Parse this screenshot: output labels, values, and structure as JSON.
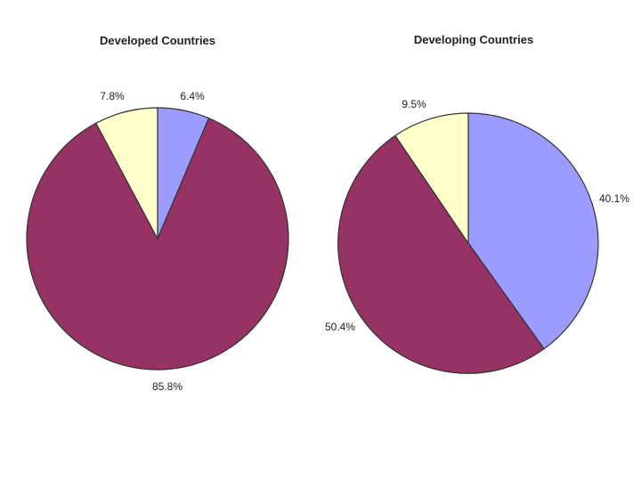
{
  "colors": {
    "Series 1": "#9c9cff",
    "Series 2": "#963264",
    "Series 3": "#ffffcc",
    "edge": "#333333"
  },
  "chart_data": [
    {
      "type": "pie",
      "title": "Developed Countries",
      "slices": [
        {
          "value": 6.4,
          "label": "6.4%",
          "color_key": "Series 1"
        },
        {
          "value": 85.8,
          "label": "85.8%",
          "color_key": "Series 2"
        },
        {
          "value": 7.8,
          "label": "7.8%",
          "color_key": "Series 3"
        }
      ],
      "start_angle_deg": 0,
      "direction": "clockwise"
    },
    {
      "type": "pie",
      "title": "Developing Countries",
      "slices": [
        {
          "value": 40.1,
          "label": "40.1%",
          "color_key": "Series 1"
        },
        {
          "value": 50.4,
          "label": "50.4%",
          "color_key": "Series 2"
        },
        {
          "value": 9.5,
          "label": "9.5%",
          "color_key": "Series 3"
        }
      ],
      "start_angle_deg": 0,
      "direction": "clockwise"
    }
  ]
}
